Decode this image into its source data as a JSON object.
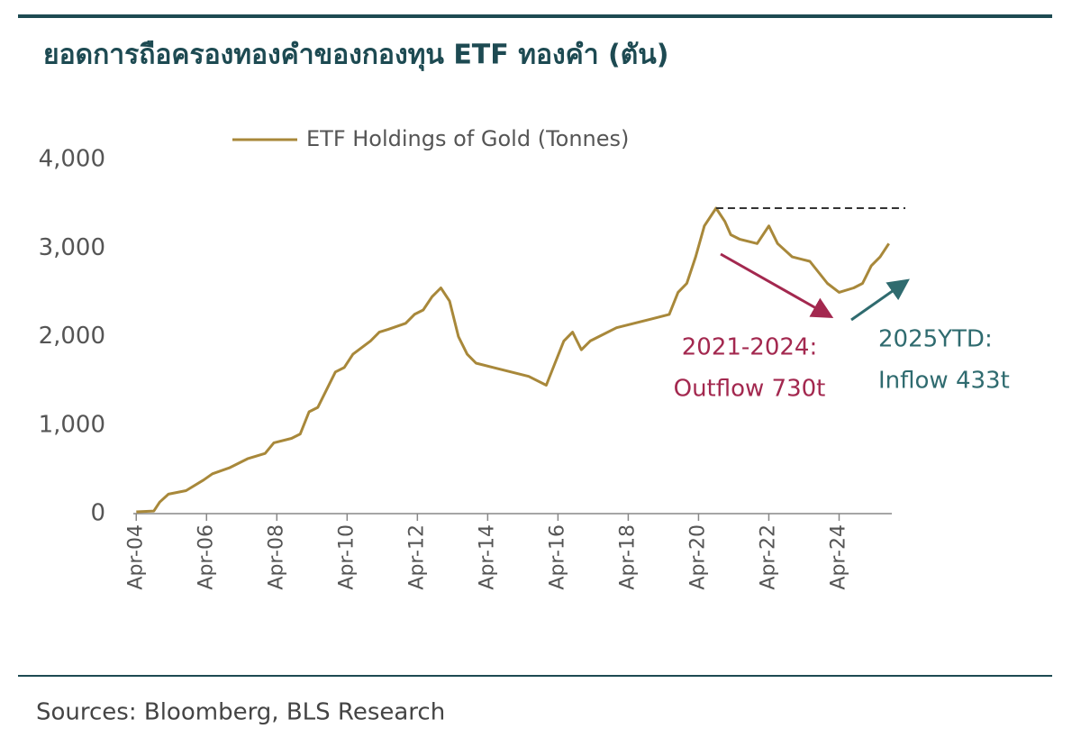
{
  "chart_data": {
    "type": "line",
    "title": "ยอดการถือครองทองคำของกองทุน ETF ทองคำ (ตัน)",
    "source": "Sources: Bloomberg, BLS Research",
    "x": [
      "2004-04",
      "2004-10",
      "2004-12",
      "2005-03",
      "2005-09",
      "2006-03",
      "2006-06",
      "2006-12",
      "2007-06",
      "2007-12",
      "2008-03",
      "2008-09",
      "2008-12",
      "2009-03",
      "2009-06",
      "2009-12",
      "2010-03",
      "2010-06",
      "2010-12",
      "2011-03",
      "2011-06",
      "2011-12",
      "2012-03",
      "2012-06",
      "2012-09",
      "2012-12",
      "2013-03",
      "2013-06",
      "2013-09",
      "2013-12",
      "2014-06",
      "2014-12",
      "2015-06",
      "2015-12",
      "2016-03",
      "2016-06",
      "2016-09",
      "2016-12",
      "2017-03",
      "2017-06",
      "2017-12",
      "2018-06",
      "2018-12",
      "2019-06",
      "2019-09",
      "2019-12",
      "2020-03",
      "2020-06",
      "2020-10",
      "2021-01",
      "2021-03",
      "2021-06",
      "2021-12",
      "2022-04",
      "2022-07",
      "2022-12",
      "2023-06",
      "2023-12",
      "2024-04",
      "2024-09",
      "2024-12",
      "2025-03",
      "2025-06",
      "2025-09"
    ],
    "series": [
      {
        "name": "ETF Holdings of Gold (Tonnes)",
        "color": "#a8883a",
        "values": [
          20,
          30,
          130,
          220,
          260,
          380,
          450,
          520,
          620,
          680,
          800,
          850,
          900,
          1150,
          1200,
          1600,
          1650,
          1800,
          1950,
          2050,
          2080,
          2150,
          2250,
          2300,
          2450,
          2550,
          2400,
          2000,
          1800,
          1700,
          1650,
          1600,
          1550,
          1450,
          1700,
          1950,
          2050,
          1850,
          1950,
          2000,
          2100,
          2150,
          2200,
          2250,
          2500,
          2600,
          2900,
          3250,
          3450,
          3300,
          3150,
          3100,
          3050,
          3250,
          3050,
          2900,
          2850,
          2600,
          2500,
          2550,
          2600,
          2800,
          2900,
          3050
        ]
      }
    ],
    "reference_line": 3450,
    "xlim": [
      "2004-03",
      "2025-10"
    ],
    "xticks": [
      {
        "value": "2004-04",
        "label": "Apr-04"
      },
      {
        "value": "2006-04",
        "label": "Apr-06"
      },
      {
        "value": "2008-04",
        "label": "Apr-08"
      },
      {
        "value": "2010-04",
        "label": "Apr-10"
      },
      {
        "value": "2012-04",
        "label": "Apr-12"
      },
      {
        "value": "2014-04",
        "label": "Apr-14"
      },
      {
        "value": "2016-04",
        "label": "Apr-16"
      },
      {
        "value": "2018-04",
        "label": "Apr-18"
      },
      {
        "value": "2020-04",
        "label": "Apr-20"
      },
      {
        "value": "2022-04",
        "label": "Apr-22"
      },
      {
        "value": "2024-04",
        "label": "Apr-24"
      }
    ],
    "ylim": [
      0,
      4000
    ],
    "yticks": [
      0,
      {
        "value": 1000,
        "label": "1,000"
      },
      {
        "value": 2000,
        "label": "2,000"
      },
      {
        "value": 3000,
        "label": "3,000"
      },
      {
        "value": 4000,
        "label": "4,000"
      }
    ],
    "annotations": [
      {
        "lines": [
          "2021-2024:",
          "Outflow 730t"
        ],
        "color": "#a3284f"
      },
      {
        "lines": [
          "2025YTD:",
          "Inflow 433t"
        ],
        "color": "#2f6b6f"
      }
    ]
  }
}
